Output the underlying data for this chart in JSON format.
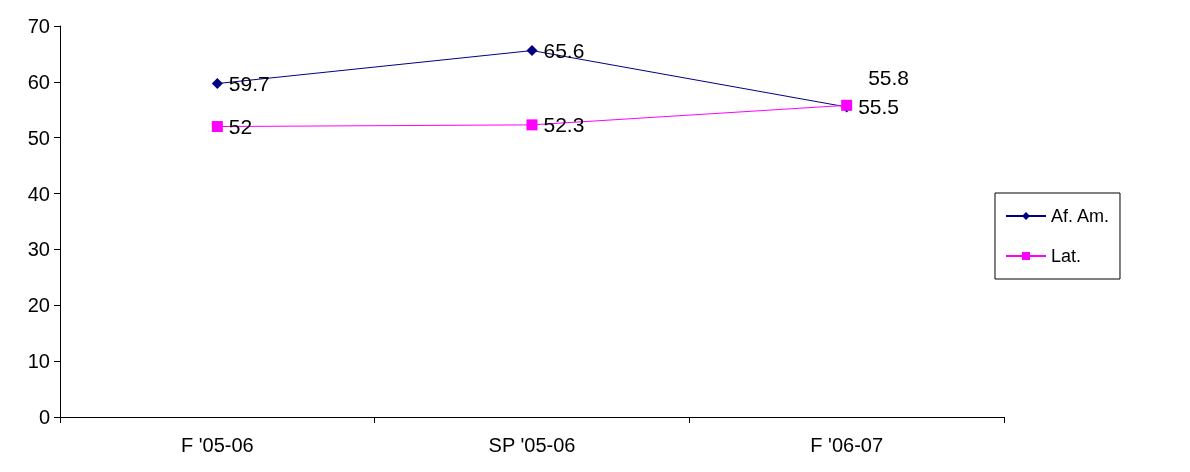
{
  "chart_data": {
    "type": "line",
    "categories": [
      "F '05-06",
      "SP '05-06",
      "F '06-07"
    ],
    "series": [
      {
        "name": "Af. Am.",
        "color": "#000080",
        "marker": "diamond",
        "values": [
          59.7,
          65.6,
          55.5
        ]
      },
      {
        "name": "Lat.",
        "color": "#ff00ff",
        "marker": "square",
        "values": [
          52,
          52.3,
          55.8
        ]
      }
    ],
    "ylim": [
      0,
      70
    ],
    "yticks": [
      0,
      10,
      20,
      30,
      40,
      50,
      60,
      70
    ],
    "grid": false,
    "legend": "right",
    "data_labels": true
  }
}
